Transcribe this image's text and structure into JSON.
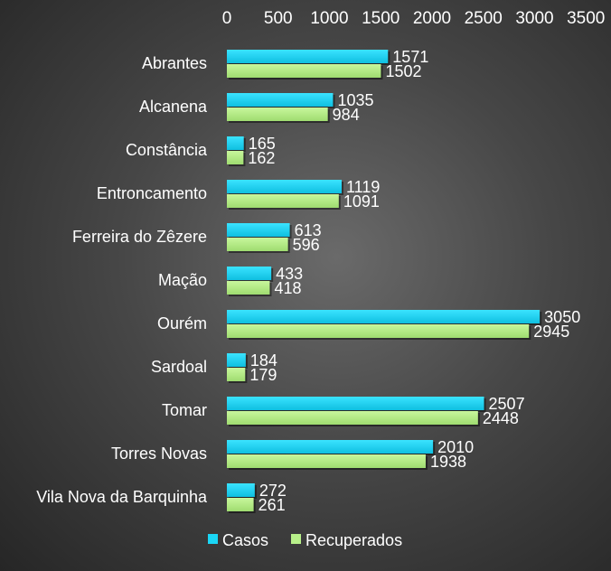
{
  "chart_data": {
    "type": "bar",
    "orientation": "horizontal",
    "categories": [
      "Abrantes",
      "Alcanena",
      "Constância",
      "Entroncamento",
      "Ferreira do Zêzere",
      "Mação",
      "Ourém",
      "Sardoal",
      "Tomar",
      "Torres Novas",
      "Vila Nova da Barquinha"
    ],
    "series": [
      {
        "name": "Casos",
        "color": "#1ad6f5",
        "values": [
          1571,
          1035,
          165,
          1119,
          613,
          433,
          3050,
          184,
          2507,
          2010,
          272
        ]
      },
      {
        "name": "Recuperados",
        "color": "#b8f08a",
        "values": [
          1502,
          984,
          162,
          1091,
          596,
          418,
          2945,
          179,
          2448,
          1938,
          261
        ]
      }
    ],
    "xlim": [
      0,
      3500
    ],
    "xticks": [
      "0",
      "500",
      "1000",
      "1500",
      "2000",
      "2500",
      "3000",
      "3500"
    ],
    "x_axis_position": "top",
    "grid": false,
    "legend_position": "bottom",
    "title": "",
    "xlabel": "",
    "ylabel": ""
  }
}
